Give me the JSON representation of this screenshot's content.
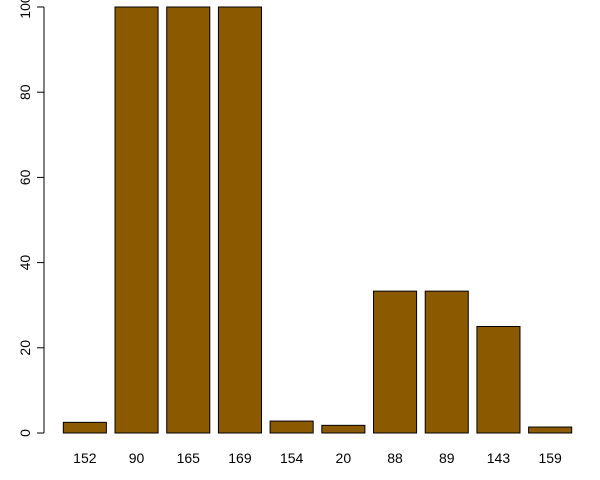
{
  "chart_data": {
    "type": "bar",
    "title": "",
    "xlabel": "",
    "ylabel": "",
    "categories": [
      "152",
      "90",
      "165",
      "169",
      "154",
      "20",
      "88",
      "89",
      "143",
      "159"
    ],
    "values": [
      2.5,
      100,
      100,
      100,
      2.8,
      1.8,
      33.3,
      33.3,
      25,
      1.4
    ],
    "ylim": [
      0,
      100
    ],
    "yticks": [
      "0",
      "20",
      "40",
      "60",
      "80",
      "100"
    ],
    "grid": false,
    "legend": "none",
    "colors": {
      "bar": "#8b5a00",
      "bar_border": "#000000",
      "axis": "#000000"
    }
  }
}
